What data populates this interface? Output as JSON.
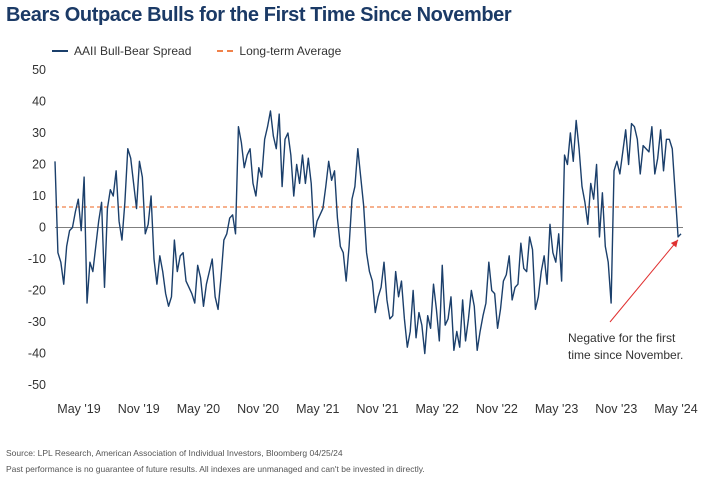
{
  "chart_data": {
    "type": "line",
    "title": "Bears Outpace Bulls for the First Time Since November",
    "xlabel": "",
    "ylabel": "",
    "ylim": [
      -50,
      50
    ],
    "y_ticks": [
      "50",
      "40",
      "30",
      "20",
      "10",
      "0",
      "-10",
      "-20",
      "-30",
      "-40",
      "-50"
    ],
    "x_ticks": [
      "May '19",
      "Nov '19",
      "May '20",
      "Nov '20",
      "May '21",
      "Nov '21",
      "May '22",
      "Nov '22",
      "May '23",
      "Nov '23",
      "May '24"
    ],
    "series": [
      {
        "name": "AAII Bull-Bear Spread",
        "color": "#1b3f6b",
        "style": "solid",
        "start": "2019-04-01",
        "interval_weeks": 1,
        "values": [
          21,
          -8,
          -11,
          -18,
          -6,
          -1,
          0,
          5,
          9,
          -1,
          16,
          -24,
          -11,
          -14,
          -6,
          2,
          8,
          -19,
          6,
          12,
          10,
          18,
          2,
          -4,
          8,
          25,
          22,
          14,
          6,
          21,
          16,
          -2,
          1,
          10,
          -10,
          -18,
          -9,
          -14,
          -21,
          -25,
          -22,
          -4,
          -14,
          -9,
          -8,
          -17,
          -19,
          -21,
          -24,
          -12,
          -16,
          -25,
          -18,
          -14,
          -10,
          -22,
          -26,
          -16,
          -4,
          -2,
          3,
          4,
          -2,
          32,
          27,
          19,
          23,
          25,
          14,
          10,
          19,
          16,
          28,
          32,
          37,
          29,
          25,
          36,
          13,
          28,
          30,
          23,
          10,
          20,
          14,
          23,
          14,
          22,
          14,
          -3,
          2,
          4,
          6,
          13,
          21,
          15,
          18,
          3,
          -6,
          -8,
          -17,
          -6,
          9,
          13,
          25,
          16,
          7,
          -8,
          -14,
          -17,
          -27,
          -22,
          -19,
          -11,
          -23,
          -29,
          -28,
          -14,
          -22,
          -17,
          -29,
          -38,
          -33,
          -20,
          -35,
          -27,
          -31,
          -40,
          -28,
          -32,
          -18,
          -26,
          -36,
          -12,
          -31,
          -29,
          -22,
          -39,
          -33,
          -38,
          -23,
          -36,
          -29,
          -20,
          -25,
          -39,
          -33,
          -28,
          -24,
          -11,
          -20,
          -21,
          -32,
          -26,
          -17,
          -15,
          -9,
          -23,
          -19,
          -18,
          -5,
          -13,
          -14,
          -3,
          -7,
          -26,
          -22,
          -14,
          -9,
          -18,
          1,
          -8,
          -11,
          -2,
          -17,
          23,
          20,
          30,
          21,
          34,
          25,
          13,
          8,
          1,
          14,
          9,
          20,
          -3,
          11,
          -6,
          -11,
          -24,
          18,
          21,
          17,
          24,
          31,
          20,
          33,
          32,
          28,
          17,
          26,
          25,
          24,
          32,
          17,
          22,
          31,
          18,
          28,
          28,
          25,
          11,
          -3,
          -2
        ]
      },
      {
        "name": "Long-term Average",
        "color": "#f0824a",
        "style": "dashed",
        "value": 6.5
      }
    ],
    "annotation": {
      "text_line1": "Negative for the first",
      "text_line2": "time since November."
    }
  },
  "footer": {
    "source": "Source: LPL Research, American Association of Individual Investors, Bloomberg 04/25/24",
    "disclaimer": "Past performance is no guarantee of future results. All indexes are unmanaged and can't be invested in directly."
  }
}
